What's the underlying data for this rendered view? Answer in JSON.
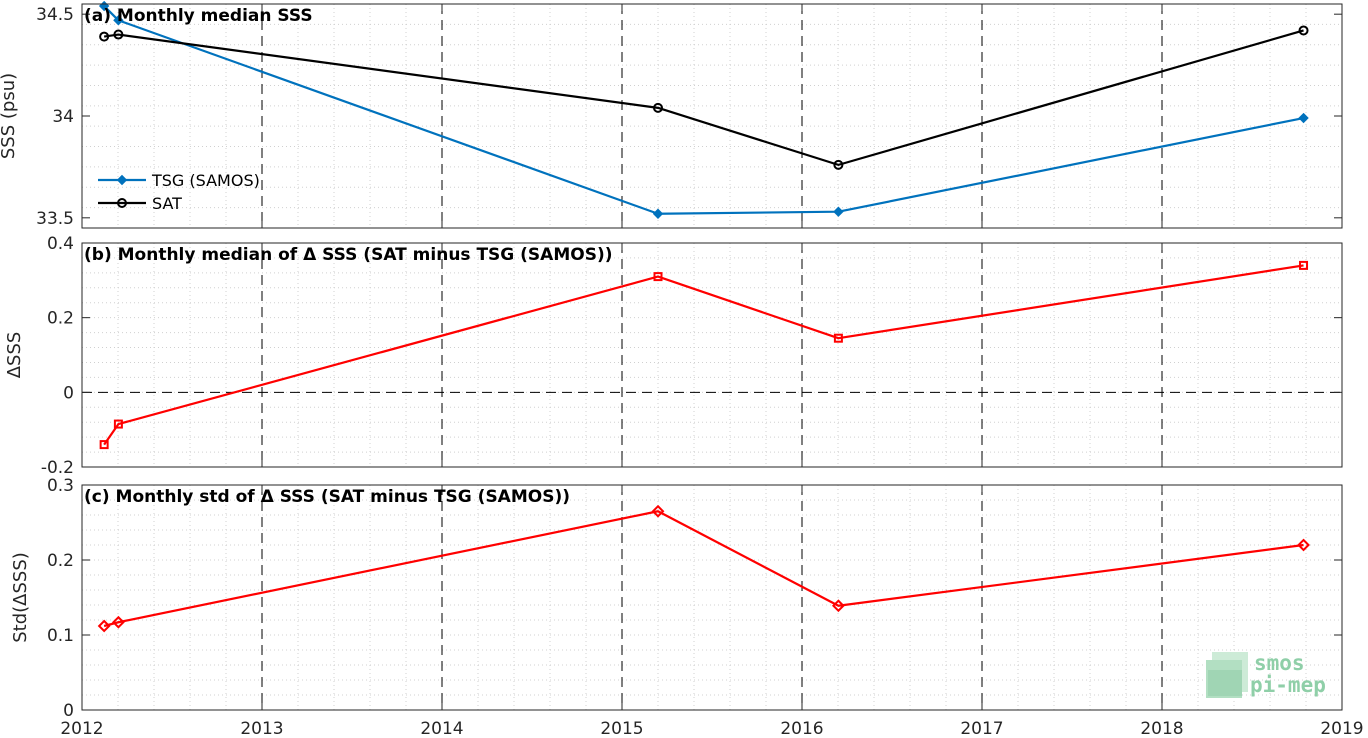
{
  "chart_data": [
    {
      "type": "line",
      "panel": "a",
      "title": "(a) Monthly median SSS",
      "ylabel": "SSS (psu)",
      "xlim": [
        "2012-01-01",
        "2019-01-01"
      ],
      "ylim": [
        33.45,
        34.55
      ],
      "yticks": [
        33.5,
        34,
        34.5
      ],
      "ytick_labels": [
        "33.5",
        "34",
        "34.5"
      ],
      "grid": "dotted minor grid, dashed vertical lines at each year",
      "legend": "lower-left",
      "series": [
        {
          "name": "TSG (SAMOS)",
          "color": "#0072BD",
          "marker": "dot",
          "x": [
            "2012-02-15",
            "2012-03-15",
            "2015-03-15",
            "2016-03-15",
            "2018-10-15"
          ],
          "y": [
            34.54,
            34.47,
            33.52,
            33.53,
            33.99
          ]
        },
        {
          "name": "SAT",
          "color": "#000000",
          "marker": "circle",
          "x": [
            "2012-02-15",
            "2012-03-15",
            "2015-03-15",
            "2016-03-15",
            "2018-10-15"
          ],
          "y": [
            34.39,
            34.4,
            34.04,
            33.76,
            34.42
          ]
        }
      ]
    },
    {
      "type": "line",
      "panel": "b",
      "title": "(b) Monthly median of Δ SSS (SAT minus TSG (SAMOS))",
      "ylabel": "ΔSSS",
      "xlim": [
        "2012-01-01",
        "2019-01-01"
      ],
      "ylim": [
        -0.2,
        0.4
      ],
      "yticks": [
        -0.2,
        0,
        0.2,
        0.4
      ],
      "ytick_labels": [
        "-0.2",
        "0",
        "0.2",
        "0.4"
      ],
      "zero_line": true,
      "series": [
        {
          "color": "#ff0000",
          "marker": "square",
          "x": [
            "2012-02-15",
            "2012-03-15",
            "2015-03-15",
            "2016-03-15",
            "2018-10-15"
          ],
          "y": [
            -0.14,
            -0.085,
            0.31,
            0.145,
            0.34
          ]
        }
      ]
    },
    {
      "type": "line",
      "panel": "c",
      "title": "(c) Monthly std of Δ SSS (SAT minus TSG (SAMOS))",
      "ylabel": "Std(ΔSSS)",
      "xlim": [
        "2012-01-01",
        "2019-01-01"
      ],
      "ylim": [
        0,
        0.3
      ],
      "yticks": [
        0,
        0.1,
        0.2,
        0.3
      ],
      "ytick_labels": [
        "0",
        "0.1",
        "0.2",
        "0.3"
      ],
      "xticks": [
        "2012",
        "2013",
        "2014",
        "2015",
        "2016",
        "2017",
        "2018",
        "2019"
      ],
      "series": [
        {
          "color": "#ff0000",
          "marker": "diamond",
          "x": [
            "2012-02-15",
            "2012-03-15",
            "2015-03-15",
            "2016-03-15",
            "2018-10-15"
          ],
          "y": [
            0.112,
            0.117,
            0.265,
            0.139,
            0.22
          ]
        }
      ]
    }
  ],
  "logo": {
    "line1": "smos",
    "line2": "pi-mep",
    "color": "#8fcfa8"
  },
  "colors": {
    "axis": "#262626",
    "grid": "#d0d0d0",
    "year_line": "#000000"
  }
}
